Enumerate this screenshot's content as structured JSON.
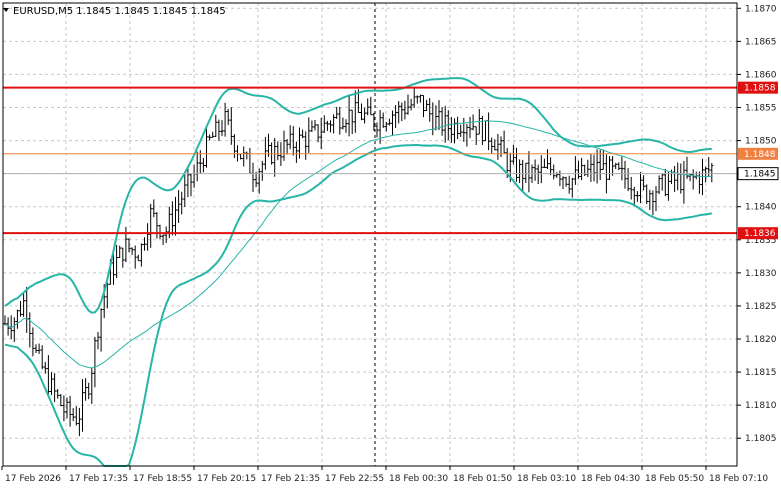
{
  "chart_data": {
    "type": "candlestick",
    "symbol": "EURUSD",
    "timeframe": "M5",
    "header": "EURUSD,M5  1.1845 1.1845 1.1845 1.1845",
    "ylim": [
      1.18008,
      1.18708
    ],
    "y_ticks": [
      "1.1805",
      "1.1810",
      "1.1815",
      "1.1820",
      "1.1825",
      "1.1830",
      "1.1835",
      "1.1840",
      "1.1845",
      "1.1850",
      "1.1855",
      "1.1860",
      "1.1865",
      "1.1870"
    ],
    "x_ticks": [
      "17 Feb 2026",
      "17 Feb 17:35",
      "17 Feb 18:55",
      "17 Feb 20:15",
      "17 Feb 21:35",
      "17 Feb 22:55",
      "18 Feb 00:30",
      "18 Feb 01:50",
      "18 Feb 03:10",
      "18 Feb 04:30",
      "18 Feb 05:50",
      "18 Feb 07:10"
    ],
    "levels": [
      {
        "value": 1.1858,
        "label": "1.1858",
        "color": "#e01010"
      },
      {
        "value": 1.1848,
        "label": "1.1848",
        "color": "#f08040"
      },
      {
        "value": 1.1836,
        "label": "1.1836",
        "color": "#e01010"
      }
    ],
    "current_price": {
      "value": 1.1845,
      "label": "1.1845",
      "color": "#b0b0b0"
    },
    "session_separator_tick": "18 Feb 00:30",
    "bar_color": "#000000",
    "bollinger_color": "#26b5a6",
    "moving_average_color": "#26b5a6",
    "grid": true
  }
}
